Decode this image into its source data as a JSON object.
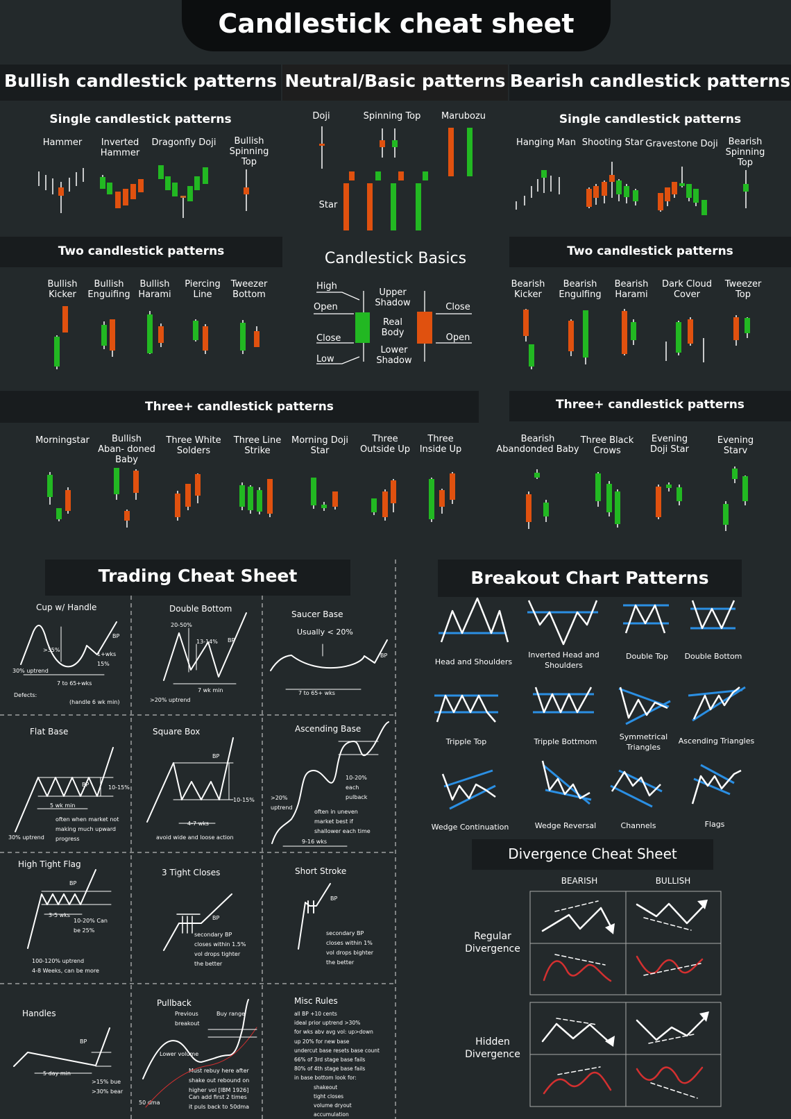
{
  "title": "Candlestick cheat sheet",
  "sections": {
    "bullish": "Bullish candlestick patterns",
    "neutral": "Neutral/Basic patterns",
    "bearish": "Bearish candlestick patterns",
    "single": "Single candlestick patterns",
    "two": "Two candlestick patterns",
    "three": "Three+ candlestick patterns",
    "basics": "Candlestick Basics",
    "trading": "Trading Cheat Sheet",
    "breakout": "Breakout Chart Patterns",
    "divergence": "Divergence Cheat Sheet"
  },
  "bullish_single": [
    "Hammer",
    "Inverted Hammer",
    "Dragonfly Doji",
    "Bullish Spinning Top"
  ],
  "bearish_single": [
    "Hanging Man",
    "Shooting Star",
    "Gravestone Doji",
    "Bearish Spinning Top"
  ],
  "neutral": [
    "Doji",
    "Spinning Top",
    "Marubozu",
    "Star"
  ],
  "bullish_two": [
    "Bullish Kicker",
    "Bullish Enguifing",
    "Bullish Harami",
    "Piercing Line",
    "Tweezer Bottom"
  ],
  "bearish_two": [
    "Bearish Kicker",
    "Bearish Engulfing",
    "Bearish Harami",
    "Dark Cloud Cover",
    "Tweezer Top"
  ],
  "bullish_three": [
    "Morningstar",
    "Bullish Aban- doned Baby",
    "Three White Solders",
    "Three Line Strike",
    "Morning Doji Star",
    "Three Outside Up",
    "Three Inside Up"
  ],
  "bearish_three": [
    "Bearish Abandonded Baby",
    "Three Black Crows",
    "Evening Doji Star",
    "Evening Starv"
  ],
  "basics": {
    "high": "High",
    "open_l": "Open",
    "close_l": "Close",
    "low": "Low",
    "upper": "Upper Shadow",
    "body": "Real Body",
    "lower": "Lower Shadow",
    "close_r": "Close",
    "open_r": "Open"
  },
  "trading": {
    "cup": {
      "title": "Cup w/ Handle",
      "a": ">35%",
      "b": "30% uptrend",
      "c": "1+wks 15%",
      "d": "BP",
      "e": "7 to 65+wks",
      "f": "Defects:",
      "g": "(handle 6 wk min)"
    },
    "double": {
      "title": "Double Bottom",
      "a": "20-50%",
      "b": "13-14%",
      "c": "BP",
      "d": "7 wk min",
      "e": ">20% uptrend"
    },
    "saucer": {
      "title": "Saucer Base",
      "a": "Usually < 20%",
      "b": "BP",
      "c": "7 to 65+ wks"
    },
    "flat": {
      "title": "Flat Base",
      "a": "BP",
      "b": "10-15%",
      "c": "5 wk min",
      "d": "often when market not making much upward progress",
      "e": "30% uptrend"
    },
    "square": {
      "title": "Square Box",
      "a": "BP",
      "b": "10-15%",
      "c": "4-7 wks",
      "d": "avoid wide and loose action"
    },
    "ascending": {
      "title": "Ascending Base",
      "a": "10-20% each pulback",
      "b": ">20% uptrend",
      "c": "often in uneven market best if shallower each time",
      "d": "9-16 wks"
    },
    "htf": {
      "title": "High Tight Flag",
      "a": "BP",
      "b": "3-5 wks",
      "c": "10-20% Can be 25%",
      "d": "100-120% uptrend",
      "e": "4-8 Weeks, can be more"
    },
    "closes": {
      "title": "3 Tight Closes",
      "a": "BP",
      "b": "secondary BP closes within 1.5% vol drops tighter the better"
    },
    "short": {
      "title": "Short Stroke",
      "a": "BP",
      "b": "secondary BP closes within 1% vol drops bighter the better"
    },
    "handles": {
      "title": "Handles",
      "a": "BP",
      "b": "5 day min",
      "c": ">15% bue >30% bear"
    },
    "pullback": {
      "title": "Pullback",
      "a": "Previous breakout",
      "b": "Buy range",
      "c": "Lower volume",
      "d": "Must rebuy here after shake out rebound on higher vol [IBM 1926]",
      "e": "Can add first 2 times it puls back to 50dma",
      "f": "50 dma"
    },
    "misc": {
      "title": "Misc Rules",
      "rules": [
        "all BP +10 cents",
        "ideal prior uptrend >30%",
        "for wks abv avg vol: up>down",
        "up 20% for new base",
        "undercut base resets base count",
        "66% of 3rd stage base fails",
        "80% of 4th stage base fails",
        "in base bottom look for:",
        "shakeout",
        "tight closes",
        "volume dryout",
        "accumulation"
      ]
    }
  },
  "breakout": [
    "Head and Shoulders",
    "Inverted Head and Shoulders",
    "Double Top",
    "Double Bottom",
    "Tripple Top",
    "Tripple Bottmom",
    "Symmetrical Triangles",
    "Ascending Triangles",
    "Wedge Continuation",
    "Wedge Reversal",
    "Channels",
    "Flags"
  ],
  "divergence": {
    "bearish": "BEARISH",
    "bullish": "BULLISH",
    "regular": "Regular Divergence",
    "hidden": "Hidden Divergence"
  },
  "colors": {
    "bull": "#22b822",
    "bear": "#e0510f",
    "bg": "#23292b",
    "band": "#181c1e",
    "blue": "#2b8fe3",
    "red": "#d33030"
  }
}
